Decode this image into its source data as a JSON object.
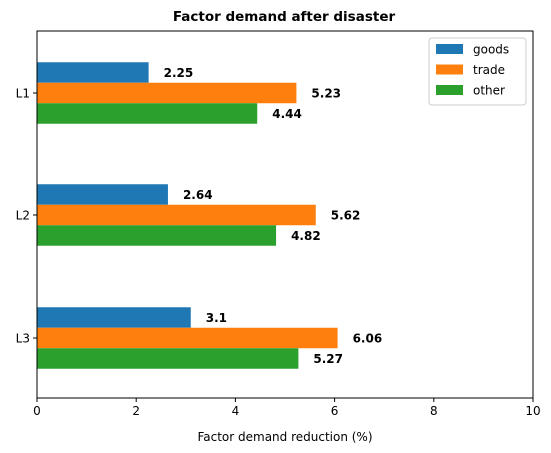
{
  "chart_data": {
    "type": "bar",
    "orientation": "horizontal",
    "title": "Factor demand after disaster",
    "xlabel": "Factor demand reduction (%)",
    "ylabel": "",
    "xlim": [
      0,
      10
    ],
    "xticks": [
      0,
      2,
      4,
      6,
      8,
      10
    ],
    "categories": [
      "L1",
      "L2",
      "L3"
    ],
    "series": [
      {
        "name": "goods",
        "color": "#1f77b4",
        "values": [
          2.25,
          2.64,
          3.1
        ],
        "labels": [
          "2.25",
          "2.64",
          "3.1"
        ]
      },
      {
        "name": "trade",
        "color": "#ff7f0e",
        "values": [
          5.23,
          5.62,
          6.06
        ],
        "labels": [
          "5.23",
          "5.62",
          "6.06"
        ]
      },
      {
        "name": "other",
        "color": "#2ca02c",
        "values": [
          4.44,
          4.82,
          5.27
        ],
        "labels": [
          "4.44",
          "4.82",
          "5.27"
        ]
      }
    ],
    "legend_position": "top-right",
    "grid": false
  }
}
